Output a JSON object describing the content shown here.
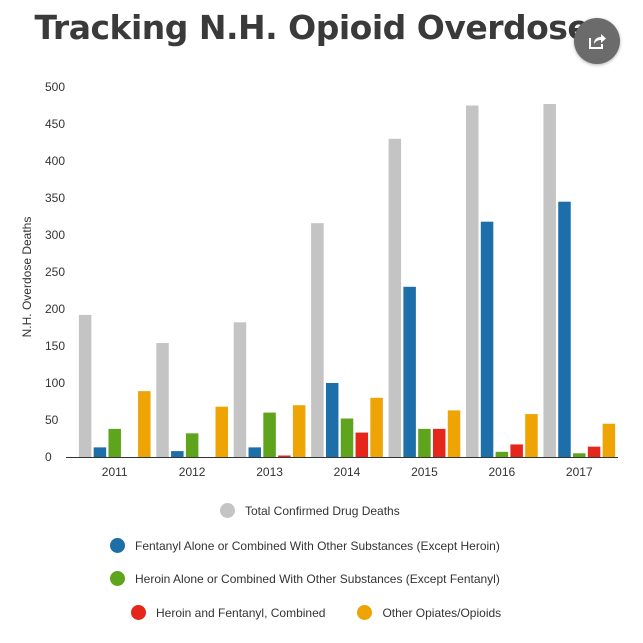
{
  "share_icon": "share-icon",
  "chart_data": {
    "type": "bar",
    "title": "Tracking N.H. Opioid Overdoses",
    "xlabel": "",
    "ylabel": "N.H. Overdose Deaths",
    "ylim": [
      0,
      500
    ],
    "yticks": [
      0,
      50,
      100,
      150,
      200,
      250,
      300,
      350,
      400,
      450,
      500
    ],
    "grid": false,
    "legend_position": "bottom",
    "categories": [
      "2011",
      "2012",
      "2013",
      "2014",
      "2015",
      "2016",
      "2017"
    ],
    "series": [
      {
        "name": "Total Confirmed Drug Deaths",
        "color": "#c4c4c4",
        "values": [
          192,
          154,
          182,
          316,
          430,
          475,
          477
        ]
      },
      {
        "name": "Fentanyl Alone or Combined With Other Substances (Except Heroin)",
        "color": "#1c6fa8",
        "values": [
          13,
          8,
          13,
          100,
          230,
          318,
          345
        ]
      },
      {
        "name": "Heroin Alone or Combined With Other Substances (Except Fentanyl)",
        "color": "#5ea51d",
        "values": [
          38,
          32,
          60,
          52,
          38,
          7,
          5
        ]
      },
      {
        "name": "Heroin and Fentanyl, Combined",
        "color": "#e5271b",
        "values": [
          0,
          0,
          2,
          33,
          38,
          17,
          14
        ]
      },
      {
        "name": "Other Opiates/Opioids",
        "color": "#eea405",
        "values": [
          89,
          68,
          70,
          80,
          63,
          58,
          45
        ]
      }
    ]
  }
}
